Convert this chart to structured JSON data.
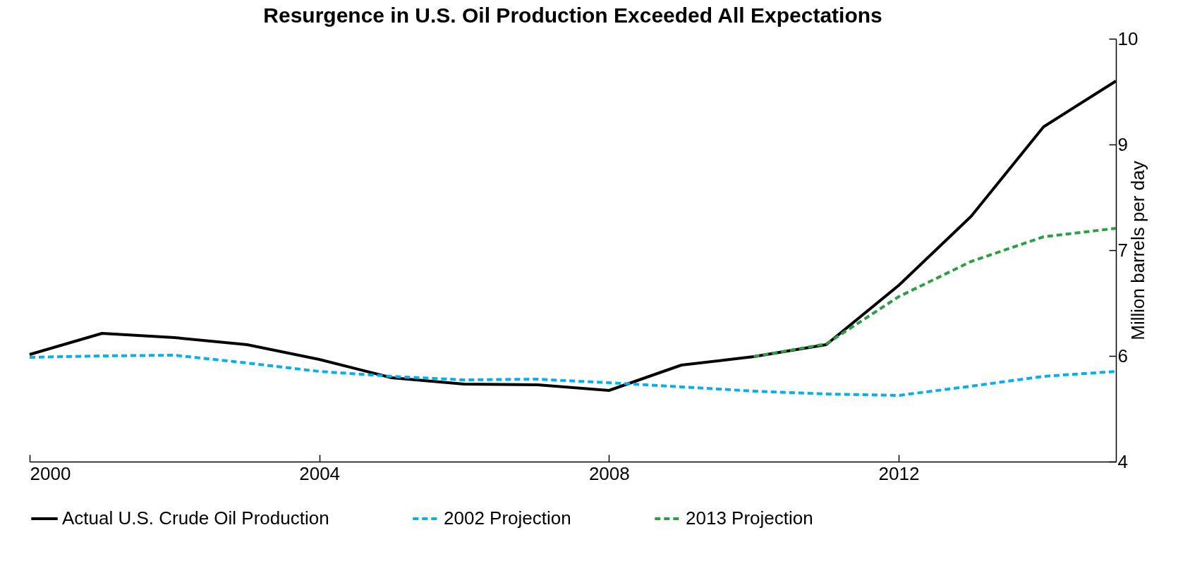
{
  "chart_data": {
    "type": "line",
    "title": "Resurgence in U.S. Oil Production Exceeded All Expectations",
    "y2label": "Million barrels per day",
    "xlim": [
      2000,
      2015
    ],
    "xticks": [
      2000,
      2004,
      2008,
      2012
    ],
    "y2lim": [
      4,
      10
    ],
    "y2ticks": [
      4,
      {
        "value": 5.5,
        "label": "6"
      },
      7,
      {
        "value": 8.5,
        "label": "9"
      },
      10
    ],
    "grid": false,
    "legend": "bottom",
    "marker": "none",
    "series": [
      {
        "name": "Actual U.S. Crude Oil Production",
        "color": "#000000",
        "line_style": "solid",
        "axis": "y2",
        "x": [
          2000,
          2001,
          2002,
          2003,
          2004,
          2005,
          2006,
          2007,
          2008,
          2009,
          2010,
          2011,
          2012,
          2013,
          2014,
          2015
        ],
        "values": [
          5.52,
          5.82,
          5.76,
          5.66,
          5.45,
          5.19,
          5.1,
          5.09,
          5.01,
          5.37,
          5.49,
          5.66,
          6.5,
          7.48,
          8.75,
          9.4
        ]
      },
      {
        "name": "2002 Projection",
        "color": "#00b0f0",
        "line_style": "dashed",
        "axis": "y2",
        "x": [
          2000,
          2001,
          2002,
          2003,
          2004,
          2005,
          2006,
          2007,
          2008,
          2009,
          2010,
          2011,
          2012,
          2013,
          2014,
          2015
        ],
        "values": [
          5.48,
          5.5,
          5.51,
          5.4,
          5.28,
          5.21,
          5.16,
          5.17,
          5.12,
          5.06,
          5.0,
          4.96,
          4.94,
          5.07,
          5.21,
          5.28
        ]
      },
      {
        "name": "2013 Projection",
        "color": "#2ca040",
        "line_style": "dashed",
        "axis": "y2",
        "x": [
          2010,
          2011,
          2012,
          2013,
          2014,
          2015
        ],
        "values": [
          5.49,
          5.67,
          6.34,
          6.84,
          7.19,
          7.31
        ]
      }
    ]
  }
}
